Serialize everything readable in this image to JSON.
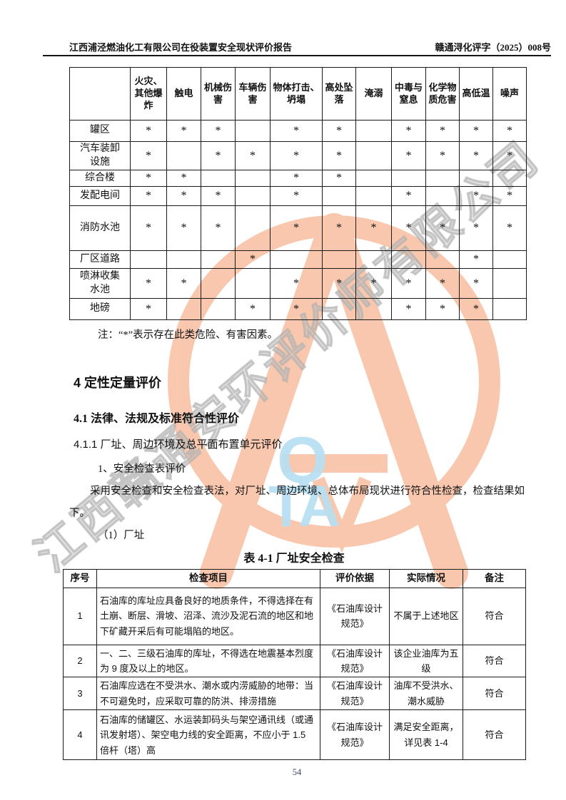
{
  "header": {
    "left": "江西浦泾燃油化工有限公司在役装置安全现状评价报告",
    "right": "赣通浔化评字（2025）008号"
  },
  "hazard_table": {
    "corner": "",
    "mark_symbol": "*",
    "columns": [
      "火灾、其他爆炸",
      "触电",
      "机械伤害",
      "车辆伤害",
      "物体打击、坍塌",
      "高处坠落",
      "淹溺",
      "中毒与窒息",
      "化学物质危害",
      "高低温",
      "噪声"
    ],
    "rows": [
      {
        "label": "罐区",
        "marks": [
          1,
          1,
          1,
          0,
          1,
          1,
          0,
          1,
          1,
          1,
          1
        ]
      },
      {
        "label": "汽车装卸设施",
        "marks": [
          1,
          0,
          1,
          1,
          1,
          1,
          0,
          1,
          1,
          1,
          1
        ]
      },
      {
        "label": "综合楼",
        "marks": [
          1,
          1,
          0,
          0,
          1,
          1,
          0,
          0,
          0,
          0,
          0
        ]
      },
      {
        "label": "发配电间",
        "marks": [
          1,
          1,
          1,
          0,
          1,
          0,
          0,
          1,
          0,
          1,
          1
        ]
      },
      {
        "label": "消防水池",
        "marks": [
          1,
          1,
          1,
          0,
          1,
          1,
          1,
          1,
          1,
          1,
          1
        ]
      },
      {
        "label": "厂区道路",
        "marks": [
          0,
          0,
          0,
          1,
          0,
          0,
          0,
          0,
          0,
          1,
          0
        ]
      },
      {
        "label": "喷淋收集水池",
        "marks": [
          1,
          1,
          0,
          0,
          1,
          1,
          1,
          1,
          1,
          1,
          0
        ]
      },
      {
        "label": "地磅",
        "marks": [
          1,
          0,
          0,
          1,
          1,
          0,
          0,
          1,
          1,
          1,
          0
        ]
      }
    ],
    "note": "注：“*”表示存在此类危险、有害因素。"
  },
  "sections": {
    "h1": "4 定性定量评价",
    "h2": "4.1 法律、法规及标准符合性评价",
    "h3": "4.1.1 厂址、周边环境及总平面布置单元评价",
    "item1": "1、安全检查表评价",
    "paragraph": "采用安全检查和安全检查表法，对厂址、周边环境、总体布局现状进行符合性检查，检查结果如下。",
    "item2": "（1）厂址",
    "table_caption": "表 4-1  厂址安全检查"
  },
  "check_table": {
    "columns": [
      "序号",
      "检查项目",
      "评价依据",
      "实际情况",
      "备注"
    ],
    "rows": [
      {
        "no": "1",
        "item": "石油库的库址应具备良好的地质条件，不得选择在有土崩、断层、滑坡、沼泽、流沙及泥石流的地区和地下矿藏开采后有可能塌陷的地区。",
        "basis": "《石油库设计规范》",
        "actual": "不属于上述地区",
        "remark": "符合"
      },
      {
        "no": "2",
        "item": "一、二、三级石油库的库址，不得选在地震基本烈度为 9 度及以上的地区。",
        "basis": "《石油库设计规范》",
        "actual": "该企业油库为五级",
        "remark": "符合"
      },
      {
        "no": "3",
        "item": "石油库应选在不受洪水、潮水或内涝威胁的地带：当不可避免时，应采取可靠的防洪、排涝措施",
        "basis": "《石油库设计规范》",
        "actual": "油库不受洪水、潮水威胁",
        "remark": "符合"
      },
      {
        "no": "4",
        "item": "石油库的储罐区、水运装卸码头与架空通讯线（或通讯发射塔）、架空电力线的安全距离，不应小于 1.5 倍杆（塔）高",
        "basis": "《石油库设计规范》",
        "actual": "满足安全距离，详见表 1-4",
        "remark": "符合"
      }
    ]
  },
  "watermark": {
    "company_text": "江西赣通安环评价师有限公司",
    "letter_q": "Q",
    "letters_ta": "TA",
    "ring_color": "#f8c2a6",
    "blue_color": "#b7dff2",
    "gray_color": "#c8c8c8"
  },
  "page": {
    "number": "54"
  }
}
